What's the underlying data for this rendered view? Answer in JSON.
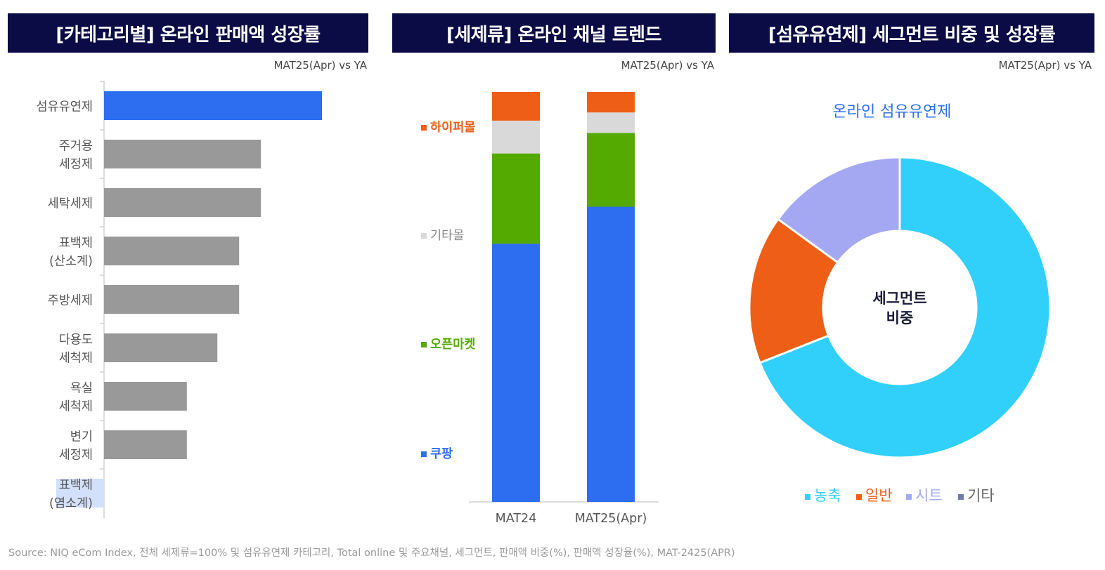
{
  "panels": {
    "left": {
      "title": "[카테고리별] 온라인 판매액 성장률",
      "subtitle": "MAT25(Apr) vs YA"
    },
    "middle": {
      "title": "[세제류] 온라인 채널 트렌드",
      "subtitle": "MAT25(Apr) vs YA"
    },
    "right": {
      "title": "[섬유유연제] 세그먼트 비중 및 성장률",
      "subtitle": "MAT25(Apr) vs YA"
    }
  },
  "source": "Source: NIQ  eCom Index, 전체 세제류=100% 및 섬유유연제 카테고리, Total online 및 주요채널, 세그먼트, 판매액 비중(%), 판매액 성장율(%), MAT-2425(APR)",
  "chart_data": [
    {
      "type": "bar",
      "orientation": "horizontal",
      "title": "[카테고리별] 온라인 판매액 성장률",
      "subtitle": "MAT25(Apr) vs YA",
      "categories": [
        "섬유유연제",
        "주거용\n세정제",
        "세탁세제",
        "표백제\n(산소계)",
        "주방세제",
        "다용도\n세척제",
        "욕실\n세척제",
        "변기\n세정제",
        "표백제\n(염소계)"
      ],
      "values": [
        100,
        72,
        72,
        62,
        62,
        52,
        38,
        38,
        -22
      ],
      "colors": [
        "#2d6ef0",
        "#999999",
        "#999999",
        "#999999",
        "#999999",
        "#999999",
        "#999999",
        "#999999",
        "#d3e0fb"
      ],
      "xlim": [
        -30,
        100
      ]
    },
    {
      "type": "bar",
      "stacked": true,
      "title": "[세제류] 온라인 채널 트렌드",
      "subtitle": "MAT25(Apr) vs YA",
      "categories": [
        "MAT24",
        "MAT25(Apr)"
      ],
      "series": [
        {
          "name": "쿠팡",
          "values": [
            63,
            72
          ],
          "color": "#2d6ef0"
        },
        {
          "name": "오픈마켓",
          "values": [
            22,
            18
          ],
          "color": "#54aa00"
        },
        {
          "name": "기타몰",
          "values": [
            8,
            5
          ],
          "color": "#d9d9d9"
        },
        {
          "name": "하이퍼몰",
          "values": [
            7,
            5
          ],
          "color": "#ee5e17"
        }
      ],
      "ylim": [
        0,
        100
      ]
    },
    {
      "type": "pie",
      "donut": true,
      "title": "[섬유유연제] 세그먼트 비중 및 성장률",
      "subtitle": "MAT25(Apr) vs YA",
      "chart_title": "온라인 섬유유연제",
      "center_label": [
        "세그먼트",
        "비중"
      ],
      "slices": [
        {
          "name": "농축",
          "value": 69,
          "color": "#31d0fb"
        },
        {
          "name": "일반",
          "value": 16,
          "color": "#ee5e17"
        },
        {
          "name": "시트",
          "value": 15,
          "color": "#a4a8f2"
        },
        {
          "name": "기타",
          "value": 0,
          "color": "#7178b0"
        }
      ]
    }
  ]
}
